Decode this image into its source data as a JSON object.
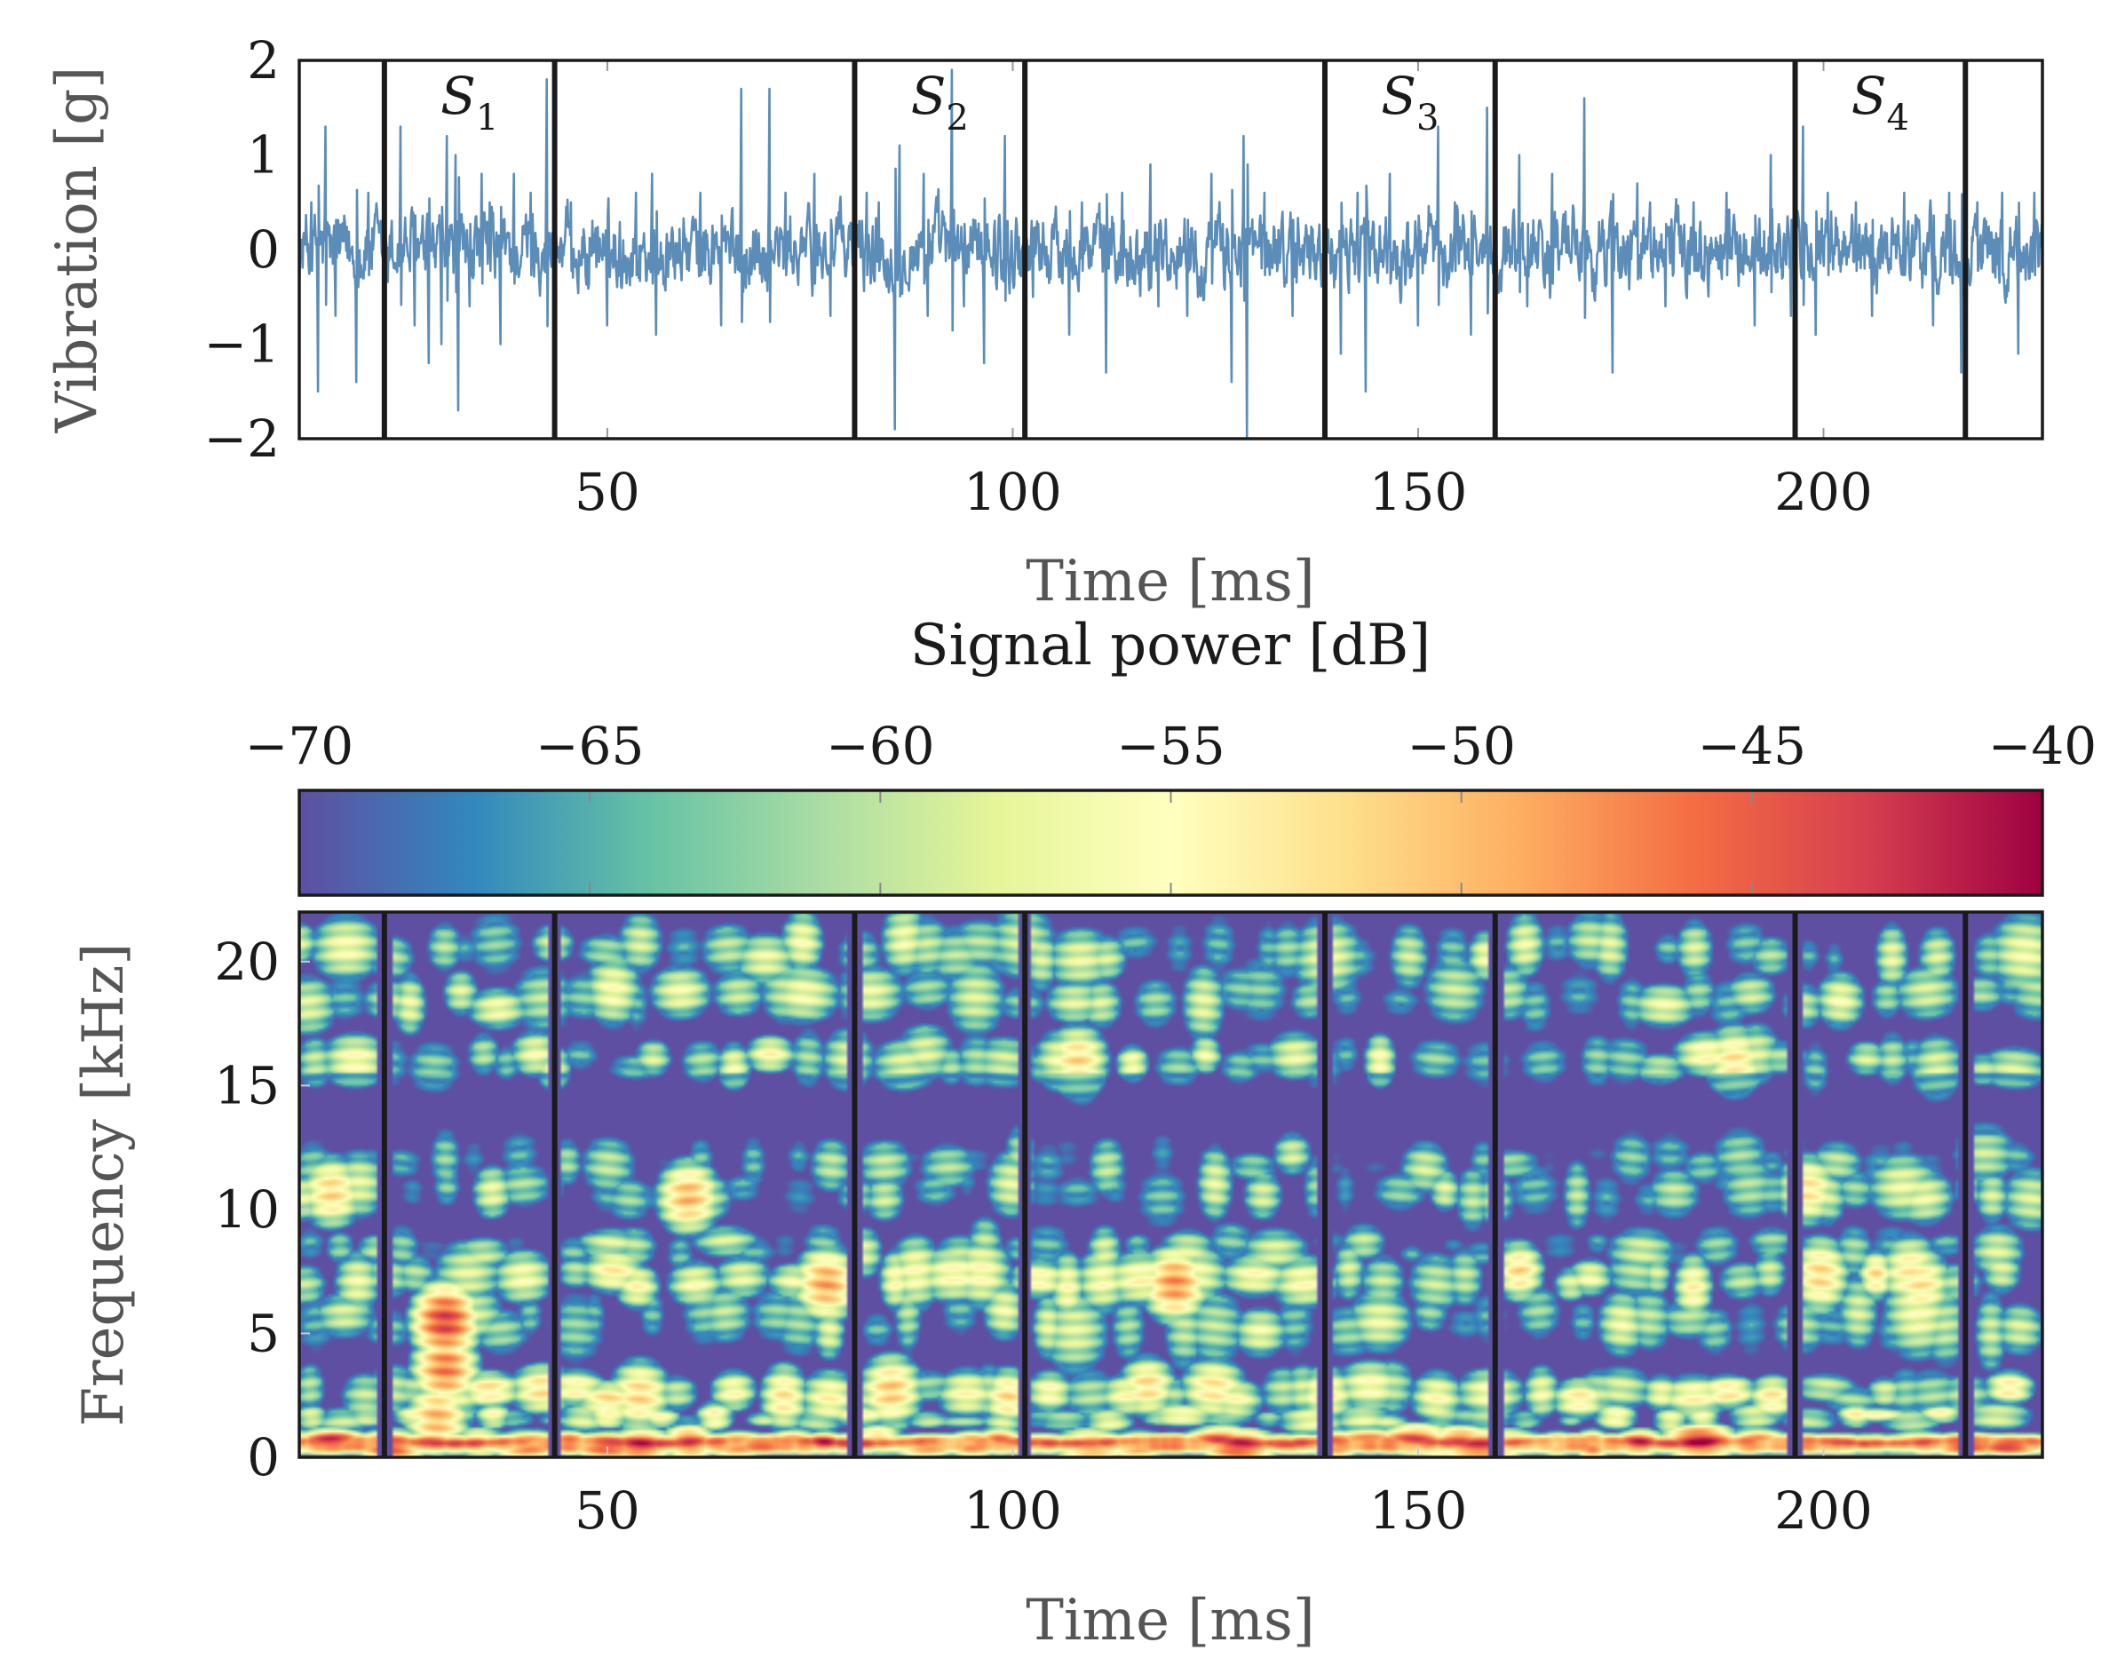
{
  "chart_data": [
    {
      "type": "line",
      "ylabel": "Vibration [g]",
      "xlabel": "Time [ms]",
      "xlim": [
        12,
        227
      ],
      "ylim": [
        -2,
        2
      ],
      "xticks": [
        50,
        100,
        150,
        200
      ],
      "yticks": [
        -2,
        -1,
        0,
        1,
        2
      ],
      "xtick_labels": [
        "50",
        "100",
        "150",
        "200"
      ],
      "ytick_labels": [
        "−2",
        "−1",
        "0",
        "1",
        "2"
      ],
      "grid": false,
      "line_color": "#5b8db8",
      "segment_boundaries": [
        22.5,
        43.5,
        80.5,
        101.5,
        138.5,
        159.5,
        196.5,
        217.5
      ],
      "segments": [
        {
          "label": "S",
          "sub": "1",
          "center": 33
        },
        {
          "label": "S",
          "sub": "2",
          "center": 91
        },
        {
          "label": "S",
          "sub": "3",
          "center": 149
        },
        {
          "label": "S",
          "sub": "4",
          "center": 207
        }
      ],
      "noise_amplitude": 0.3,
      "spikes": [
        [
          13.5,
          0.5
        ],
        [
          14.3,
          -1.5
        ],
        [
          15.2,
          1.3
        ],
        [
          16.5,
          -0.7
        ],
        [
          19.0,
          -1.4
        ],
        [
          20.5,
          0.6
        ],
        [
          24.5,
          1.3
        ],
        [
          26.2,
          -0.8
        ],
        [
          28.0,
          -1.2
        ],
        [
          29.5,
          -1.0
        ],
        [
          30.2,
          1.2
        ],
        [
          31.3,
          1.0
        ],
        [
          31.6,
          -1.7
        ],
        [
          33.0,
          -0.6
        ],
        [
          34.5,
          0.8
        ],
        [
          35.5,
          0.5
        ],
        [
          36.8,
          -1.0
        ],
        [
          38.5,
          0.8
        ],
        [
          40.5,
          0.6
        ],
        [
          42.5,
          1.8
        ],
        [
          45.5,
          0.5
        ],
        [
          50.0,
          -0.8
        ],
        [
          53.5,
          0.6
        ],
        [
          55.5,
          0.8
        ],
        [
          56.0,
          -0.9
        ],
        [
          61.5,
          0.6
        ],
        [
          64.0,
          -0.8
        ],
        [
          66.5,
          1.7
        ],
        [
          70.0,
          1.7
        ],
        [
          72.0,
          0.6
        ],
        [
          75.5,
          0.8
        ],
        [
          77.5,
          -0.7
        ],
        [
          82.0,
          0.6
        ],
        [
          83.5,
          0.5
        ],
        [
          85.5,
          -1.9
        ],
        [
          86.0,
          1.1
        ],
        [
          89.0,
          0.8
        ],
        [
          89.5,
          -0.7
        ],
        [
          92.5,
          1.9
        ],
        [
          94.0,
          -0.6
        ],
        [
          96.5,
          -1.2
        ],
        [
          99.0,
          1.2
        ],
        [
          102.5,
          -0.5
        ],
        [
          107.0,
          -0.9
        ],
        [
          108.5,
          0.5
        ],
        [
          111.5,
          -1.3
        ],
        [
          113.5,
          0.6
        ],
        [
          117.0,
          0.9
        ],
        [
          118.0,
          -0.6
        ],
        [
          121.5,
          -0.7
        ],
        [
          124.5,
          0.8
        ],
        [
          127.0,
          -1.4
        ],
        [
          128.5,
          1.2
        ],
        [
          128.9,
          -2.0
        ],
        [
          131.0,
          0.6
        ],
        [
          134.5,
          -0.7
        ],
        [
          140.5,
          -1.1
        ],
        [
          142.5,
          0.6
        ],
        [
          143.5,
          -1.5
        ],
        [
          146.5,
          0.8
        ],
        [
          150.0,
          -0.8
        ],
        [
          152.5,
          1.3
        ],
        [
          154.5,
          0.5
        ],
        [
          156.5,
          -0.9
        ],
        [
          158.5,
          1.5
        ],
        [
          162.5,
          1.0
        ],
        [
          163.5,
          -0.6
        ],
        [
          166.5,
          0.8
        ],
        [
          170.5,
          1.6
        ],
        [
          174.0,
          -1.3
        ],
        [
          177.0,
          0.7
        ],
        [
          180.5,
          -0.6
        ],
        [
          184.0,
          0.5
        ],
        [
          188.0,
          0.6
        ],
        [
          191.5,
          -0.8
        ],
        [
          193.5,
          1.0
        ],
        [
          196.0,
          -0.7
        ],
        [
          197.5,
          1.3
        ],
        [
          199.0,
          -0.9
        ],
        [
          200.5,
          0.6
        ],
        [
          204.0,
          0.5
        ],
        [
          206.0,
          -0.7
        ],
        [
          210.0,
          0.6
        ],
        [
          213.5,
          -0.8
        ],
        [
          215.5,
          0.6
        ],
        [
          217.0,
          -1.3
        ],
        [
          219.0,
          0.5
        ],
        [
          222.0,
          0.6
        ],
        [
          224.0,
          -1.1
        ],
        [
          226.0,
          0.6
        ]
      ]
    },
    {
      "type": "heatmap",
      "title": "Signal power [dB]",
      "colorbar_ticks": [
        -70,
        -65,
        -60,
        -55,
        -50,
        -45,
        -40
      ],
      "colorbar_tick_labels": [
        "−70",
        "−65",
        "−60",
        "−55",
        "−50",
        "−45",
        "−40"
      ],
      "colorbar_range": [
        -70,
        -40
      ],
      "colormap": "Spectral_r",
      "colormap_stops": [
        "#5e4fa2",
        "#3288bd",
        "#66c2a5",
        "#abdda4",
        "#e6f598",
        "#ffffbf",
        "#fee08b",
        "#fdae61",
        "#f46d43",
        "#d53e4f",
        "#9e0142"
      ],
      "xlabel": "Time [ms]",
      "ylabel": "Frequency [kHz]",
      "xlim": [
        12,
        227
      ],
      "ylim": [
        0,
        22
      ],
      "xticks": [
        50,
        100,
        150,
        200
      ],
      "yticks": [
        0,
        5,
        10,
        15,
        20
      ],
      "xtick_labels": [
        "50",
        "100",
        "150",
        "200"
      ],
      "ytick_labels": [
        "0",
        "5",
        "10",
        "15",
        "20"
      ],
      "segment_boundaries": [
        22.5,
        43.5,
        80.5,
        101.5,
        138.5,
        159.5,
        196.5,
        217.5
      ],
      "background_level": -70,
      "bands": [
        {
          "freq": 0.6,
          "level": -47,
          "width": 0.25
        },
        {
          "freq": 1.6,
          "level": -60,
          "width": 0.3
        },
        {
          "freq": 2.6,
          "level": -58,
          "width": 0.6
        },
        {
          "freq": 5.5,
          "level": -62,
          "width": 0.9
        },
        {
          "freq": 7.2,
          "level": -58,
          "width": 0.7
        },
        {
          "freq": 8.5,
          "level": -64,
          "width": 0.6
        },
        {
          "freq": 10.8,
          "level": -63,
          "width": 0.8
        },
        {
          "freq": 12.0,
          "level": -65,
          "width": 0.7
        },
        {
          "freq": 16.0,
          "level": -61,
          "width": 0.7
        },
        {
          "freq": 18.5,
          "level": -62,
          "width": 0.8
        },
        {
          "freq": 20.5,
          "level": -62,
          "width": 0.8
        }
      ],
      "gap_band": [
        13.0,
        15.5
      ],
      "hot_spots": [
        {
          "time": 30,
          "freq": 5.5,
          "level": -44
        },
        {
          "time": 30,
          "freq": 3.6,
          "level": -47
        },
        {
          "time": 29,
          "freq": 1.6,
          "level": -50
        },
        {
          "time": 60,
          "freq": 10.5,
          "level": -50
        },
        {
          "time": 77,
          "freq": 7.0,
          "level": -49
        },
        {
          "time": 120,
          "freq": 7.0,
          "level": -48
        },
        {
          "time": 108,
          "freq": 16.0,
          "level": -52
        },
        {
          "time": 16,
          "freq": 10.7,
          "level": -52
        },
        {
          "time": 85,
          "freq": 2.7,
          "level": -51
        },
        {
          "time": 54,
          "freq": 2.5,
          "level": -52
        },
        {
          "time": 189,
          "freq": 16.0,
          "level": -53
        },
        {
          "time": 198,
          "freq": 10.8,
          "level": -53
        },
        {
          "time": 212,
          "freq": 7.0,
          "level": -53
        }
      ]
    }
  ]
}
